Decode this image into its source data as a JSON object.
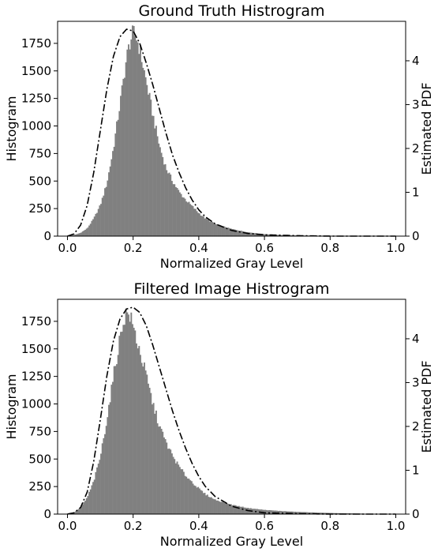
{
  "chart_data": [
    {
      "type": "bar",
      "title": "Ground Truth Histrogram",
      "xlabel": "Normalized Gray Level",
      "ylabel": "Histogram",
      "y2label": "Estimated PDF",
      "xlim": [
        -0.03,
        1.03
      ],
      "ylim": [
        0,
        1950
      ],
      "y2lim": [
        0,
        4.9
      ],
      "xticks": [
        "0.0",
        "0.2",
        "0.4",
        "0.6",
        "0.8",
        "1.0"
      ],
      "yticks": [
        "0",
        "250",
        "500",
        "750",
        "1000",
        "1250",
        "1500",
        "1750"
      ],
      "y2ticks": [
        "0",
        "1",
        "2",
        "3",
        "4"
      ],
      "bar_color": "#808080",
      "curve_color": "#000000",
      "curve_style": "dash-dot",
      "histogram_points": {
        "x": [
          0.0,
          0.02,
          0.04,
          0.06,
          0.08,
          0.1,
          0.12,
          0.14,
          0.16,
          0.18,
          0.19,
          0.2,
          0.21,
          0.22,
          0.24,
          0.26,
          0.28,
          0.3,
          0.32,
          0.34,
          0.36,
          0.38,
          0.4,
          0.42,
          0.45,
          0.5,
          0.55,
          0.6,
          0.65,
          0.7,
          0.8,
          0.9,
          1.0
        ],
        "counts": [
          0,
          10,
          30,
          70,
          160,
          280,
          480,
          800,
          1200,
          1620,
          1760,
          1850,
          1800,
          1700,
          1400,
          1100,
          820,
          620,
          500,
          400,
          330,
          270,
          210,
          160,
          110,
          65,
          35,
          18,
          10,
          6,
          3,
          1,
          0
        ]
      },
      "pdf_curve": {
        "x": [
          0.0,
          0.02,
          0.04,
          0.06,
          0.08,
          0.1,
          0.12,
          0.14,
          0.16,
          0.18,
          0.2,
          0.22,
          0.24,
          0.26,
          0.28,
          0.3,
          0.32,
          0.34,
          0.36,
          0.38,
          0.4,
          0.42,
          0.45,
          0.5,
          0.55,
          0.6,
          0.7,
          0.8,
          1.0
        ],
        "pdf": [
          0.0,
          0.05,
          0.25,
          0.7,
          1.45,
          2.4,
          3.35,
          4.1,
          4.55,
          4.72,
          4.68,
          4.4,
          3.95,
          3.45,
          2.9,
          2.35,
          1.85,
          1.45,
          1.1,
          0.82,
          0.6,
          0.44,
          0.28,
          0.13,
          0.06,
          0.03,
          0.01,
          0.0,
          0.0
        ]
      }
    },
    {
      "type": "bar",
      "title": "Filtered Image Histrogram",
      "xlabel": "Normalized Gray Level",
      "ylabel": "Histogram",
      "y2label": "Estimated PDF",
      "xlim": [
        -0.03,
        1.03
      ],
      "ylim": [
        0,
        1950
      ],
      "y2lim": [
        0,
        4.9
      ],
      "xticks": [
        "0.0",
        "0.2",
        "0.4",
        "0.6",
        "0.8",
        "1.0"
      ],
      "yticks": [
        "0",
        "250",
        "500",
        "750",
        "1000",
        "1250",
        "1500",
        "1750"
      ],
      "y2ticks": [
        "0",
        "1",
        "2",
        "3",
        "4"
      ],
      "bar_color": "#808080",
      "curve_color": "#000000",
      "curve_style": "dash-dot",
      "histogram_points": {
        "x": [
          0.0,
          0.02,
          0.04,
          0.06,
          0.08,
          0.1,
          0.12,
          0.14,
          0.16,
          0.17,
          0.18,
          0.19,
          0.2,
          0.22,
          0.24,
          0.26,
          0.28,
          0.3,
          0.32,
          0.34,
          0.36,
          0.38,
          0.4,
          0.42,
          0.45,
          0.5,
          0.55,
          0.6,
          0.65,
          0.7,
          0.8,
          0.9,
          1.0
        ],
        "counts": [
          0,
          15,
          60,
          150,
          300,
          520,
          860,
          1250,
          1600,
          1760,
          1830,
          1800,
          1700,
          1480,
          1250,
          1000,
          800,
          650,
          530,
          430,
          350,
          290,
          230,
          180,
          130,
          85,
          55,
          38,
          28,
          20,
          10,
          4,
          0
        ]
      },
      "pdf_curve": {
        "x": [
          0.0,
          0.02,
          0.04,
          0.06,
          0.08,
          0.1,
          0.12,
          0.14,
          0.16,
          0.18,
          0.2,
          0.22,
          0.24,
          0.26,
          0.28,
          0.3,
          0.32,
          0.34,
          0.36,
          0.38,
          0.4,
          0.42,
          0.45,
          0.5,
          0.55,
          0.6,
          0.7,
          0.8,
          1.0
        ],
        "pdf": [
          0.0,
          0.03,
          0.15,
          0.5,
          1.2,
          2.15,
          3.15,
          3.95,
          4.45,
          4.68,
          4.72,
          4.6,
          4.3,
          3.85,
          3.35,
          2.85,
          2.35,
          1.9,
          1.5,
          1.15,
          0.86,
          0.63,
          0.4,
          0.18,
          0.08,
          0.03,
          0.01,
          0.0,
          0.0
        ]
      }
    }
  ]
}
